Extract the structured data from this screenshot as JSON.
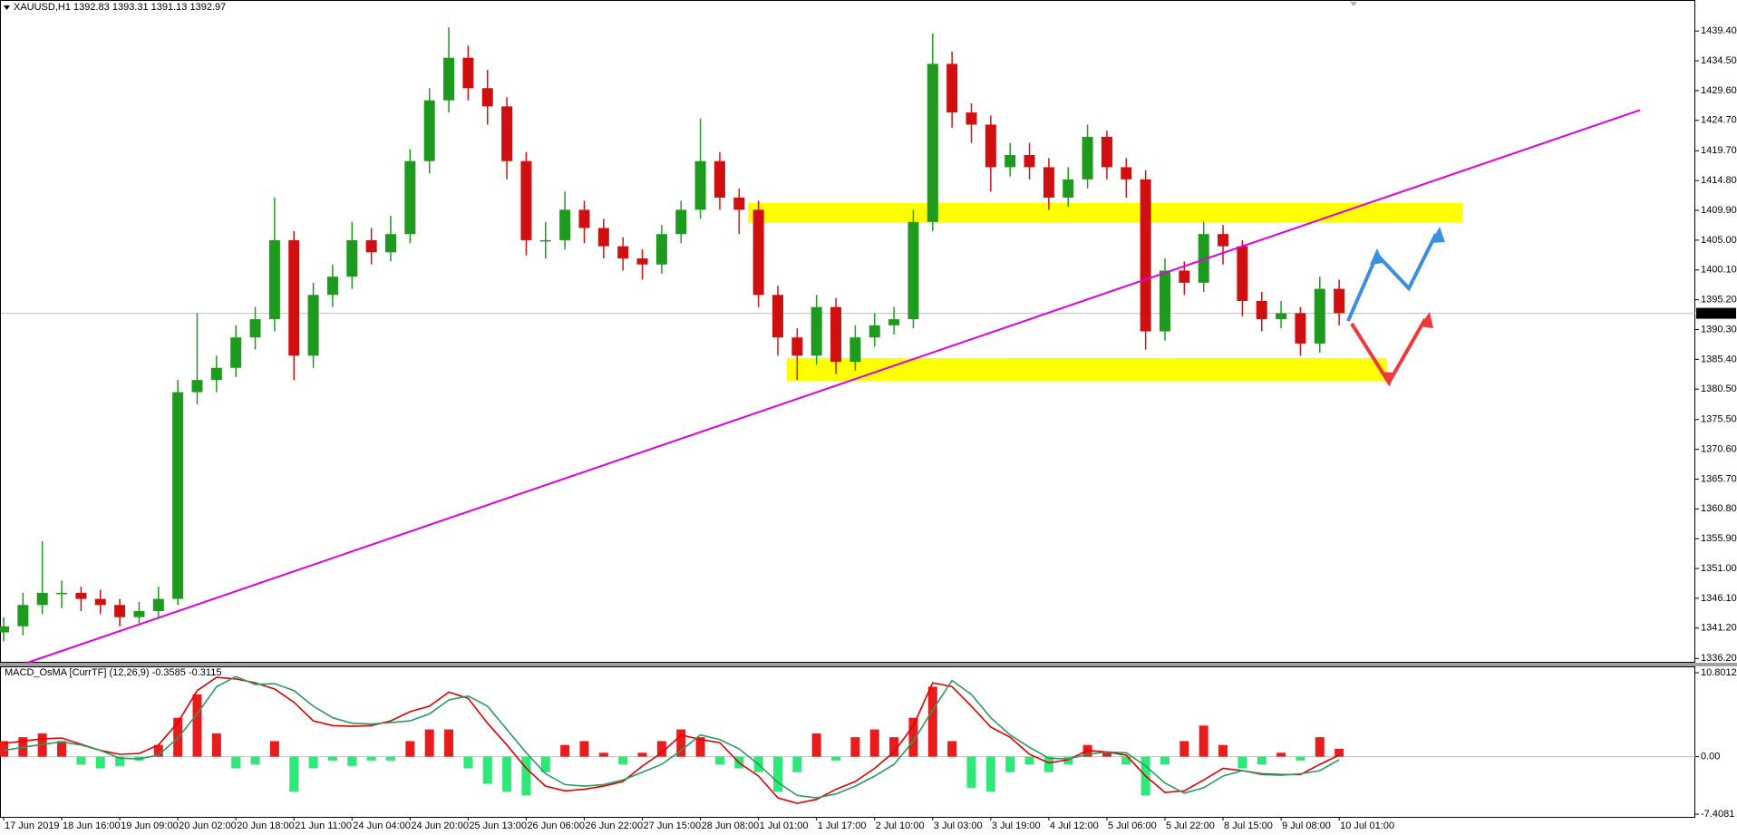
{
  "chart_data": [
    {
      "type": "candlestick",
      "title": "XAUUSD,H1  1392.83 1393.31 1391.13 1392.97",
      "categories": [
        "17 Jun 2019",
        null,
        null,
        "18 Jun 16:00",
        null,
        null,
        "19 Jun 09:00",
        null,
        null,
        "20 Jun 02:00",
        null,
        null,
        "20 Jun 18:00",
        null,
        null,
        "21 Jun 11:00",
        null,
        null,
        "24 Jun 04:00",
        null,
        null,
        "24 Jun 20:00",
        null,
        null,
        "25 Jun 13:00",
        null,
        null,
        "26 Jun 06:00",
        null,
        null,
        "26 Jun 22:00",
        null,
        null,
        "27 Jun 15:00",
        null,
        null,
        "28 Jun 08:00",
        null,
        null,
        "1 Jul 01:00",
        null,
        null,
        "1 Jul 17:00",
        null,
        null,
        "2 Jul 10:00",
        null,
        null,
        "3 Jul 03:00",
        null,
        null,
        "3 Jul 19:00",
        null,
        null,
        "4 Jul 12:00",
        null,
        null,
        "5 Jul 06:00",
        null,
        null,
        "5 Jul 22:00",
        null,
        null,
        "8 Jul 15:00",
        null,
        null,
        "9 Jul 08:00",
        null,
        null,
        "10 Jul 01:00"
      ],
      "open": [
        1340.5,
        1341.5,
        1345,
        1347,
        1347,
        1346,
        1345,
        1343,
        1344,
        1346,
        1380,
        1382,
        1384,
        1389,
        1392,
        1405,
        1386,
        1396,
        1399,
        1405,
        1403,
        1406,
        1418,
        1428,
        1435,
        1430,
        1427,
        1418,
        1405,
        1405,
        1410,
        1407,
        1404,
        1402,
        1401,
        1406,
        1410,
        1418,
        1412,
        1410,
        1396,
        1389,
        1386,
        1394,
        1385,
        1389,
        1391,
        1392,
        1408,
        1434,
        1426,
        1424,
        1417,
        1419,
        1417,
        1412,
        1415,
        1422,
        1417,
        1415,
        1390,
        1400,
        1398,
        1406,
        1404,
        1395,
        1392,
        1393,
        1388,
        1397
      ],
      "high": [
        1343,
        1347,
        1355.5,
        1349,
        1348,
        1347.5,
        1346,
        1345.5,
        1348,
        1382,
        1393,
        1386,
        1391,
        1394,
        1412,
        1406.5,
        1398,
        1401,
        1408,
        1407,
        1409,
        1420,
        1430,
        1440,
        1437,
        1433,
        1428.5,
        1419.5,
        1408,
        1413,
        1411.5,
        1408.5,
        1405.5,
        1403.5,
        1407.5,
        1411.5,
        1425,
        1419.5,
        1413.5,
        1411.5,
        1397.5,
        1390.5,
        1396,
        1395.5,
        1391,
        1393,
        1394,
        1410,
        1439,
        1436,
        1427.5,
        1425.5,
        1421,
        1421,
        1418.5,
        1417,
        1424,
        1423,
        1418.5,
        1416.5,
        1402,
        1401.5,
        1408,
        1407.5,
        1405,
        1396.5,
        1395,
        1394,
        1399,
        1398.5
      ],
      "low": [
        1339,
        1340,
        1343.5,
        1344.5,
        1344,
        1343.5,
        1341.5,
        1342,
        1343,
        1345,
        1378,
        1380,
        1382.5,
        1387,
        1390,
        1382,
        1384,
        1394,
        1397,
        1401,
        1401.5,
        1404.5,
        1416,
        1426,
        1428,
        1424,
        1415,
        1402.5,
        1402,
        1403.5,
        1404.5,
        1402,
        1400,
        1398.5,
        1399.5,
        1404.5,
        1408.5,
        1410,
        1406,
        1394,
        1386,
        1382,
        1384.5,
        1383,
        1383.5,
        1387.5,
        1389.5,
        1390.5,
        1406.5,
        1423.5,
        1421,
        1413,
        1415.5,
        1415,
        1410,
        1410.5,
        1413.5,
        1415,
        1412,
        1387,
        1388.5,
        1396,
        1396.5,
        1401,
        1392.5,
        1390,
        1390.5,
        1386,
        1386.5,
        1391
      ],
      "close": [
        1341.5,
        1345,
        1347,
        1347,
        1346,
        1345,
        1343,
        1344,
        1346,
        1380,
        1382,
        1384,
        1389,
        1392,
        1405,
        1386,
        1396,
        1399,
        1405,
        1403,
        1406,
        1418,
        1428,
        1435,
        1430,
        1427,
        1418,
        1405,
        1405,
        1410,
        1407,
        1404,
        1402,
        1401,
        1406,
        1410,
        1418,
        1412,
        1410,
        1396,
        1389,
        1386,
        1394,
        1385,
        1389,
        1391,
        1392,
        1408,
        1434,
        1426,
        1424,
        1417,
        1419,
        1417,
        1412,
        1415,
        1422,
        1417,
        1415,
        1390,
        1400,
        1398,
        1406,
        1404,
        1395,
        1392,
        1393,
        1388,
        1397,
        1393
      ],
      "up_color": "#1e9a1e",
      "down_color": "#d01010",
      "ylim": [
        1335.5,
        1444.5
      ],
      "yticks": [
        {
          "value": 1336.2,
          "label": "1336.20"
        },
        {
          "value": 1341.2,
          "label": "1341.20"
        },
        {
          "value": 1346.1,
          "label": "1346.10"
        },
        {
          "value": 1351.0,
          "label": "1351.00"
        },
        {
          "value": 1355.9,
          "label": "1355.90"
        },
        {
          "value": 1360.8,
          "label": "1360.80"
        },
        {
          "value": 1365.7,
          "label": "1365.70"
        },
        {
          "value": 1370.6,
          "label": "1370.60"
        },
        {
          "value": 1375.5,
          "label": "1375.50"
        },
        {
          "value": 1380.5,
          "label": "1380.50"
        },
        {
          "value": 1385.4,
          "label": "1385.40"
        },
        {
          "value": 1390.3,
          "label": "1390.30"
        },
        {
          "value": 1395.2,
          "label": "1395.20"
        },
        {
          "value": 1400.1,
          "label": "1400.10"
        },
        {
          "value": 1405.0,
          "label": "1405.00"
        },
        {
          "value": 1409.9,
          "label": "1409.90"
        },
        {
          "value": 1414.8,
          "label": "1414.80"
        },
        {
          "value": 1419.7,
          "label": "1419.70"
        },
        {
          "value": 1424.7,
          "label": "1424.70"
        },
        {
          "value": 1429.6,
          "label": "1429.60"
        },
        {
          "value": 1434.5,
          "label": "1434.50"
        },
        {
          "value": 1439.4,
          "label": "1439.40"
        }
      ],
      "current_price": 1392.97,
      "zones": [
        {
          "low": 1407.9,
          "high": 1411.1,
          "color": "#ffff00"
        },
        {
          "low": 1381.8,
          "high": 1385.6,
          "color": "#ffff00"
        }
      ],
      "trendline": {
        "start": 1335.5,
        "end": 1426.4,
        "color": "#e000e0"
      }
    },
    {
      "type": "macd",
      "title": "MACD_OsMA [CurrTF] (12,26,9) -0.3585 -0.3115",
      "histogram": {
        "values": [
          2,
          2.5,
          3,
          2,
          -1,
          -1.5,
          -1.2,
          -0.5,
          1.5,
          5,
          8,
          3,
          -1.5,
          -1,
          2,
          -4.5,
          -1.5,
          -0.5,
          -1.2,
          -0.5,
          -0.5,
          2,
          3.5,
          3.5,
          -1.5,
          -3.5,
          -4.5,
          -5,
          -2,
          1.5,
          2,
          0.5,
          -1,
          0.5,
          2,
          3.5,
          2.5,
          -1,
          -1.5,
          -2,
          -4.5,
          -2,
          3,
          -0.5,
          2.5,
          3.5,
          2.5,
          5,
          9,
          2,
          -4,
          -4.5,
          -2,
          -1,
          -2,
          -1,
          1.5,
          0.5,
          -1,
          -5,
          -1,
          2,
          4,
          1.5,
          -1.5,
          -1,
          0.5,
          -0.5,
          2.5,
          1
        ],
        "up_color": "#e81c1c",
        "down_color": "#2ee87a"
      },
      "series": [
        {
          "color": "#e00000",
          "values": [
            1.7,
            2.0,
            2.3,
            2.4,
            1.6,
            0.8,
            0.3,
            0.4,
            1.5,
            4.4,
            8.5,
            10.2,
            10.0,
            9.5,
            8.7,
            7.0,
            4.6,
            4.0,
            3.9,
            4.0,
            4.6,
            5.8,
            6.5,
            8.3,
            7.5,
            4.3,
            1.5,
            -1.5,
            -3.8,
            -4.4,
            -4.2,
            -3.8,
            -3.2,
            -1.2,
            0.5,
            2.8,
            2.2,
            1.8,
            -0.8,
            -2.5,
            -5.3,
            -6.0,
            -5.5,
            -4.2,
            -3.2,
            -1.5,
            0.6,
            4.0,
            9.5,
            9.0,
            6.5,
            3.8,
            2.5,
            0.3,
            -0.8,
            -0.4,
            0.8,
            0.6,
            0.2,
            -2.5,
            -4.6,
            -4.4,
            -3.0,
            -1.5,
            -1.8,
            -2.2,
            -2.3,
            -2.3,
            -1.0,
            0.2
          ]
        },
        {
          "color": "#2a9a62",
          "values": [
            0.8,
            1.2,
            1.6,
            1.9,
            1.5,
            0.8,
            -0.2,
            -0.3,
            0.2,
            2.4,
            5.5,
            9.0,
            10.3,
            9.3,
            9.4,
            8.5,
            6.5,
            5.0,
            4.3,
            4.2,
            4.4,
            4.6,
            5.5,
            7.3,
            7.8,
            6.5,
            3.5,
            0.5,
            -2.2,
            -3.6,
            -3.8,
            -3.6,
            -3.0,
            -2.0,
            -1.0,
            0.8,
            2.8,
            2.2,
            1.0,
            -1.0,
            -3.3,
            -5.0,
            -5.3,
            -4.8,
            -3.8,
            -2.5,
            -1.0,
            2.0,
            6.0,
            9.8,
            8.0,
            5.0,
            2.8,
            1.2,
            -0.2,
            -0.3,
            0.3,
            0.6,
            0.5,
            -1.2,
            -3.4,
            -4.7,
            -4.0,
            -2.5,
            -1.8,
            -2.3,
            -2.4,
            -2.2,
            -1.8,
            -0.4
          ]
        }
      ],
      "ylim": [
        -7.75,
        11.5
      ],
      "yticks": [
        10.8012,
        {
          "value": 0,
          "label": "0.00"
        },
        -7.4081
      ]
    }
  ]
}
